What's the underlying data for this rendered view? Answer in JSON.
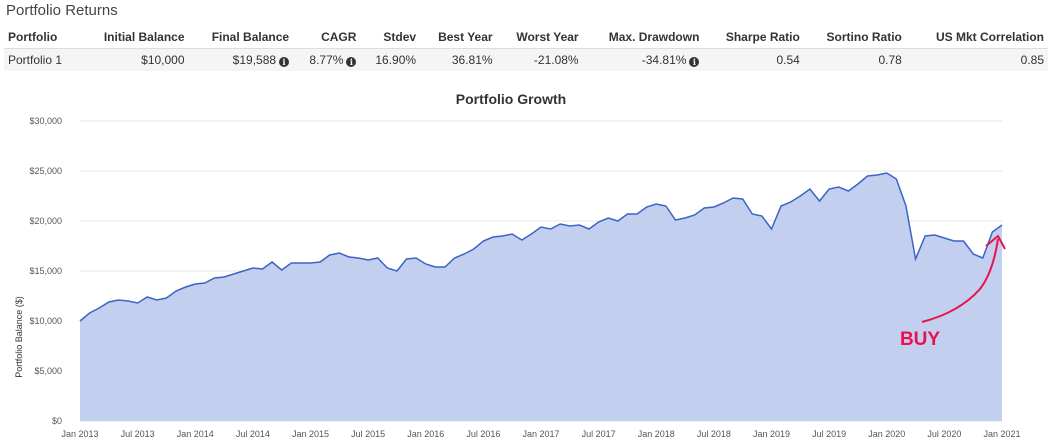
{
  "section_title": "Portfolio Returns",
  "table": {
    "headers": [
      "Portfolio",
      "Initial Balance",
      "Final Balance",
      "CAGR",
      "Stdev",
      "Best Year",
      "Worst Year",
      "Max. Drawdown",
      "Sharpe Ratio",
      "Sortino Ratio",
      "US Mkt Correlation"
    ],
    "row": {
      "portfolio": "Portfolio 1",
      "initial_balance": "$10,000",
      "final_balance": "$19,588",
      "cagr": "8.77%",
      "stdev": "16.90%",
      "best_year": "36.81%",
      "worst_year": "-21.08%",
      "max_drawdown": "-34.81%",
      "sharpe_ratio": "0.54",
      "sortino_ratio": "0.78",
      "us_mkt_correlation": "0.85"
    },
    "info_icon": "info-circle-icon"
  },
  "chart_data": {
    "type": "area",
    "title": "Portfolio Growth",
    "ylabel": "Portfolio Balance ($)",
    "xlabel": "",
    "ylim": [
      0,
      30000
    ],
    "y_ticks": [
      "$0",
      "$5,000",
      "$10,000",
      "$15,000",
      "$20,000",
      "$25,000",
      "$30,000"
    ],
    "x_ticks": [
      "Jan 2013",
      "Jul 2013",
      "Jan 2014",
      "Jul 2014",
      "Jan 2015",
      "Jul 2015",
      "Jan 2016",
      "Jul 2016",
      "Jan 2017",
      "Jul 2017",
      "Jan 2018",
      "Jul 2018",
      "Jan 2019",
      "Jul 2019",
      "Jan 2020",
      "Jul 2020",
      "Jan 2021"
    ],
    "x_start": "Jan 2013",
    "grid": true,
    "fill_color": "#c3cfee",
    "line_color": "#3c64c4",
    "series": [
      {
        "values": [
          10000,
          10800,
          11300,
          11900,
          12100,
          12000,
          11800,
          12400,
          12100,
          12300,
          13000,
          13400,
          13700,
          13800,
          14300,
          14400,
          14700,
          15000,
          15300,
          15200,
          15900,
          15100,
          15800,
          15800,
          15800,
          15900,
          16600,
          16800,
          16400,
          16300,
          16100,
          16300,
          15300,
          15000,
          16200,
          16300,
          15700,
          15400,
          15400,
          16300,
          16700,
          17200,
          18000,
          18400,
          18500,
          18700,
          18100,
          18700,
          19400,
          19200,
          19700,
          19500,
          19600,
          19200,
          19900,
          20300,
          20000,
          20700,
          20700,
          21400,
          21700,
          21500,
          20100,
          20300,
          20600,
          21300,
          21400,
          21800,
          22300,
          22200,
          20700,
          20500,
          19200,
          21500,
          21900,
          22500,
          23200,
          22000,
          23200,
          23400,
          23000,
          23700,
          24500,
          24600,
          24800,
          24200,
          21500,
          16200,
          18500,
          18600,
          18300,
          18000,
          18000,
          16700,
          16300,
          18900,
          19600
        ]
      }
    ],
    "annotation": {
      "text": "BUY",
      "color": "#e8134e",
      "arrow_from_date_index": 95,
      "arrow_to_date_index": 110
    }
  }
}
